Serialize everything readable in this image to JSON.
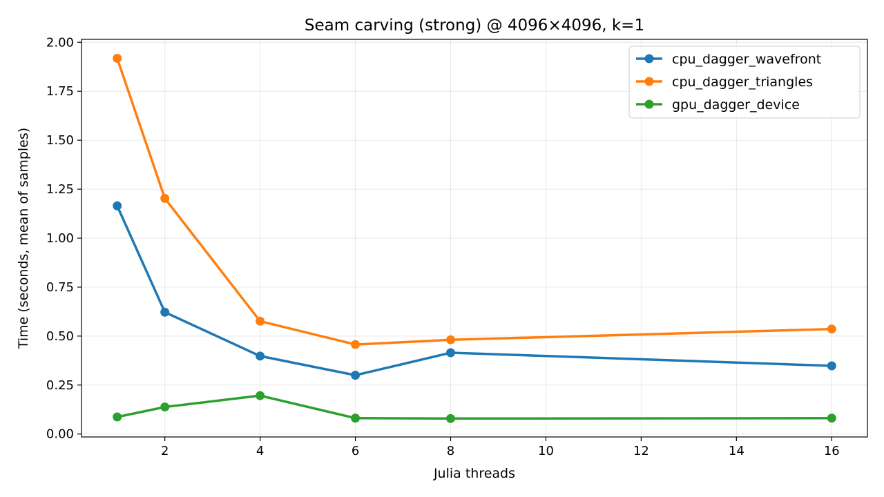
{
  "chart_data": {
    "type": "line",
    "title": "Seam carving (strong) @ 4096×4096, k=1",
    "xlabel": "Julia threads",
    "ylabel": "Time (seconds, mean of samples)",
    "xlim": [
      0.25,
      16.75
    ],
    "ylim": [
      -0.015,
      2.015
    ],
    "xticks": [
      2,
      4,
      6,
      8,
      10,
      12,
      14,
      16
    ],
    "xtick_labels": [
      "2",
      "4",
      "6",
      "8",
      "10",
      "12",
      "14",
      "16"
    ],
    "yticks": [
      0.0,
      0.25,
      0.5,
      0.75,
      1.0,
      1.25,
      1.5,
      1.75,
      2.0
    ],
    "ytick_labels": [
      "0.00",
      "0.25",
      "0.50",
      "0.75",
      "1.00",
      "1.25",
      "1.50",
      "1.75",
      "2.00"
    ],
    "grid": true,
    "legend_position": "top-right",
    "x": [
      1,
      2,
      4,
      6,
      8,
      16
    ],
    "series": [
      {
        "name": "cpu_dagger_wavefront",
        "color": "#1f77b4",
        "values": [
          1.165,
          0.622,
          0.398,
          0.3,
          0.415,
          0.348
        ]
      },
      {
        "name": "cpu_dagger_triangles",
        "color": "#ff7f0e",
        "values": [
          1.918,
          1.203,
          0.576,
          0.457,
          0.481,
          0.536
        ]
      },
      {
        "name": "gpu_dagger_device",
        "color": "#2ca02c",
        "values": [
          0.087,
          0.138,
          0.196,
          0.081,
          0.079,
          0.081
        ]
      }
    ]
  }
}
